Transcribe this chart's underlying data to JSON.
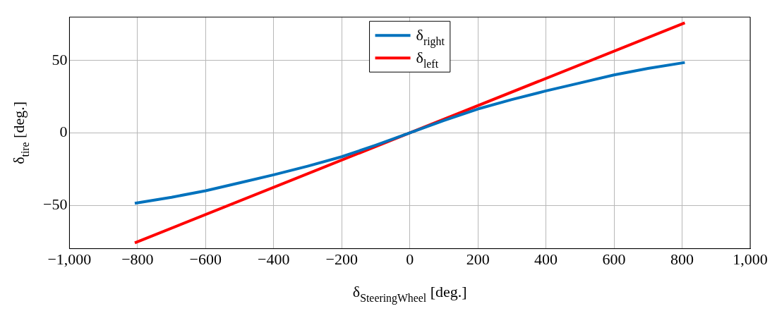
{
  "chart_data": {
    "type": "line",
    "xlabel": "δ$_{SteeringWheel}$ [deg.]",
    "ylabel": "δ$_{tire}$ [deg.]",
    "xlim": [
      -1000,
      1000
    ],
    "ylim": [
      -80,
      80
    ],
    "xticks": [
      {
        "value": -1000,
        "label": "−1,000"
      },
      {
        "value": -800,
        "label": "−800"
      },
      {
        "value": -600,
        "label": "−600"
      },
      {
        "value": -400,
        "label": "−400"
      },
      {
        "value": -200,
        "label": "−200"
      },
      0,
      200,
      400,
      600,
      800,
      {
        "value": 1000,
        "label": "1,000"
      }
    ],
    "yticks": [
      {
        "value": -50,
        "label": "−50"
      },
      0,
      50
    ],
    "grid": true,
    "legend": "top",
    "line_style": "solid",
    "marker": "none",
    "series": [
      {
        "name": "δ$_{right}$",
        "color": "#0072bd",
        "x": [
          -808,
          -700,
          -600,
          -500,
          -400,
          -300,
          -200,
          -100,
          0,
          100,
          200,
          300,
          400,
          500,
          600,
          700,
          808
        ],
        "values": [
          -48.6,
          -44.5,
          -40,
          -34.5,
          -29,
          -23,
          -16.5,
          -8.5,
          0,
          8.5,
          16.5,
          23,
          29,
          34.5,
          40,
          44.5,
          48.6
        ]
      },
      {
        "name": "δ$_{left}$",
        "color": "#ff0000",
        "x": [
          -808,
          0,
          808
        ],
        "values": [
          -76,
          0,
          76
        ]
      }
    ]
  }
}
